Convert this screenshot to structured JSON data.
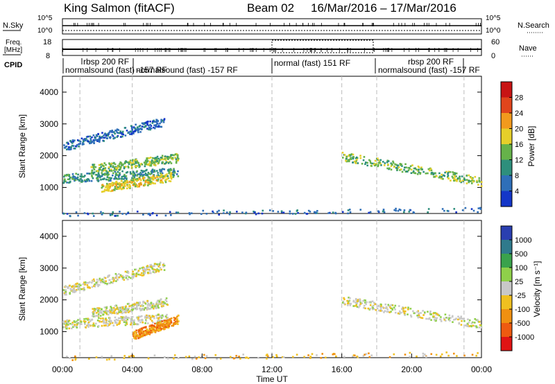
{
  "header": {
    "title": "King Salmon (fitACF)",
    "beam": "Beam 02",
    "dates": "16/Mar/2016 – 17/Mar/2016"
  },
  "top_panels": {
    "nsky": {
      "label": "N.Sky",
      "ticks": [
        "10^5",
        "10^0"
      ]
    },
    "nsearch": {
      "label": "N.Search",
      "ticks": [
        "10^5",
        "10^0"
      ]
    },
    "freq": {
      "label_line1": "Freq.",
      "label_line2": "[MHz]",
      "ticks": [
        "18",
        "8"
      ]
    },
    "nave": {
      "label": "Nave",
      "ticks": [
        "60",
        "0"
      ]
    },
    "cpid": {
      "label": "CPID",
      "entries": [
        "rbsp 200 RF",
        "normalsound (fast) -157 RF",
        "normalsound (fast) -157 RF",
        "normal (fast) 151 RF",
        "rbsp 200 RF",
        "normalsound (fast) -157 RF"
      ]
    }
  },
  "chart_data": [
    {
      "type": "heatmap",
      "name": "power",
      "xlabel": "",
      "ylabel": "Slant Range [km]",
      "colorbar_label": "Power [dB]",
      "x_range_hours": [
        0,
        24
      ],
      "ylim": [
        180,
        4500
      ],
      "yticks": [
        "1000",
        "2000",
        "3000",
        "4000"
      ],
      "colorbar_ticks": [
        "4",
        "8",
        "12",
        "16",
        "20",
        "24",
        "28"
      ],
      "colors": [
        "#1436c8",
        "#2f6fb8",
        "#2e8f7c",
        "#66b24a",
        "#e6cf2a",
        "#f29a1d",
        "#e0451c",
        "#c81414"
      ],
      "regions": [
        {
          "t0": 0.0,
          "t1": 6.6,
          "r_start": 1300,
          "r_end": 1500,
          "level": 2
        },
        {
          "t0": 1.6,
          "t1": 6.6,
          "r_start": 1600,
          "r_end": 1950,
          "level": 3
        },
        {
          "t0": 2.2,
          "t1": 6.2,
          "r_start": 1000,
          "r_end": 1350,
          "level": 4
        },
        {
          "t0": 0.0,
          "t1": 5.8,
          "r_start": 2300,
          "r_end": 3100,
          "level": 1
        },
        {
          "t0": 16.0,
          "t1": 24.0,
          "r_start": 2000,
          "r_end": 1200,
          "level": 3
        },
        {
          "t0": 0.0,
          "t1": 24.0,
          "r_start": 180,
          "r_end": 320,
          "level": 1
        }
      ]
    },
    {
      "type": "heatmap",
      "name": "velocity",
      "xlabel": "Time UT",
      "ylabel": "Slant Range [km]",
      "colorbar_label": "Velocity [m s⁻¹]",
      "x_range_hours": [
        0,
        24
      ],
      "ylim": [
        180,
        4500
      ],
      "yticks": [
        "1000",
        "2000",
        "3000",
        "4000"
      ],
      "colorbar_ticks": [
        "1000",
        "500",
        "100",
        "25",
        "-25",
        "-100",
        "-500",
        "-1000"
      ],
      "colors": [
        "#2a3fb0",
        "#2f7a8c",
        "#3aa24c",
        "#8fd04a",
        "#c8c8c8",
        "#f0c020",
        "#f09010",
        "#ee5a10",
        "#e01414"
      ],
      "regions": [
        {
          "t0": 0.0,
          "t1": 6.0,
          "r_start": 1250,
          "r_end": 1450,
          "level": 4
        },
        {
          "t0": 0.0,
          "t1": 5.8,
          "r_start": 2300,
          "r_end": 3100,
          "level": 4
        },
        {
          "t0": 1.6,
          "t1": 6.0,
          "r_start": 1600,
          "r_end": 1950,
          "level": 4
        },
        {
          "t0": 4.0,
          "t1": 6.6,
          "r_start": 900,
          "r_end": 1400,
          "level": 6
        },
        {
          "t0": 16.0,
          "t1": 24.0,
          "r_start": 2000,
          "r_end": 1250,
          "level": 4
        },
        {
          "t0": 0.0,
          "t1": 24.0,
          "r_start": 180,
          "r_end": 320,
          "level": 5
        }
      ]
    }
  ],
  "time_axis": {
    "label": "Time UT",
    "ticks": [
      "00:00",
      "04:00",
      "08:00",
      "12:00",
      "16:00",
      "20:00",
      "00:00"
    ]
  }
}
